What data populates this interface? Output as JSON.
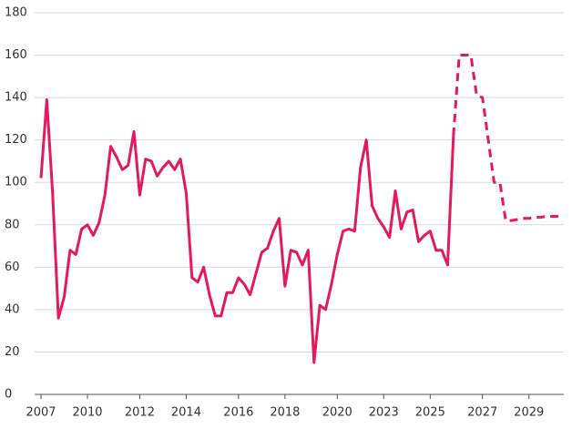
{
  "chart_data": {
    "type": "line",
    "categories": [
      "2007",
      null,
      null,
      null,
      null,
      null,
      null,
      null,
      "2010",
      null,
      null,
      null,
      null,
      null,
      null,
      null,
      null,
      "2012",
      null,
      null,
      null,
      null,
      null,
      null,
      null,
      "2014",
      null,
      null,
      null,
      null,
      null,
      null,
      null,
      null,
      "2016",
      null,
      null,
      null,
      null,
      null,
      null,
      null,
      "2018",
      null,
      null,
      null,
      null,
      null,
      null,
      null,
      null,
      "2020",
      null,
      null,
      null,
      null,
      null,
      null,
      null,
      "2023",
      null,
      null,
      null,
      null,
      null,
      null,
      null,
      "2025",
      null,
      null,
      null,
      null,
      null,
      null,
      null,
      null,
      "2027",
      null,
      null,
      null,
      null,
      null,
      null,
      null,
      "2029",
      null,
      null,
      null,
      null,
      null,
      null
    ],
    "series": [
      {
        "color": "#e5195e",
        "style": "solid",
        "values": [
          102,
          139,
          95,
          36,
          46,
          68,
          66,
          78,
          80,
          75,
          81,
          94,
          117,
          112,
          106,
          108,
          124,
          94,
          111,
          110,
          103,
          107,
          110,
          106,
          111,
          95,
          55,
          53,
          60,
          47,
          37,
          37,
          48,
          48,
          55,
          52,
          47,
          57,
          67,
          69,
          77,
          83,
          51,
          68,
          67,
          61,
          68,
          15,
          42,
          40,
          52,
          66,
          77,
          78,
          77,
          107,
          120,
          89,
          83,
          79,
          74,
          96,
          78,
          86,
          87,
          72,
          75,
          77,
          68,
          68,
          61,
          122,
          null,
          null,
          null,
          null,
          null,
          null,
          null,
          null,
          null,
          null,
          null,
          null,
          null,
          null,
          null,
          null,
          null,
          null,
          null
        ]
      },
      {
        "color": "#e5195e",
        "style": "dashed",
        "values": [
          null,
          null,
          null,
          null,
          null,
          null,
          null,
          null,
          null,
          null,
          null,
          null,
          null,
          null,
          null,
          null,
          null,
          null,
          null,
          null,
          null,
          null,
          null,
          null,
          null,
          null,
          null,
          null,
          null,
          null,
          null,
          null,
          null,
          null,
          null,
          null,
          null,
          null,
          null,
          null,
          null,
          null,
          null,
          null,
          null,
          null,
          null,
          null,
          null,
          null,
          null,
          null,
          null,
          null,
          null,
          null,
          null,
          null,
          null,
          null,
          null,
          null,
          null,
          null,
          null,
          null,
          null,
          null,
          null,
          null,
          null,
          122,
          160,
          160,
          160,
          141,
          140,
          120,
          100,
          100,
          82,
          82,
          82.5,
          83,
          83,
          83.5,
          83.5,
          84,
          84,
          84,
          84
        ]
      }
    ],
    "ylim": [
      0,
      180
    ],
    "yticks": [
      0,
      20,
      40,
      60,
      80,
      100,
      120,
      140,
      160,
      180
    ],
    "grid": true
  }
}
